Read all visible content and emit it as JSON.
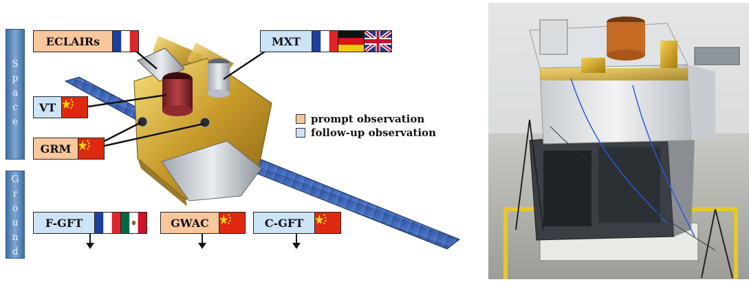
{
  "space_bar": {
    "letters": [
      "S",
      "p",
      "a",
      "c",
      "e"
    ]
  },
  "ground_bar": {
    "letters": [
      "G",
      "r",
      "o",
      "u",
      "n",
      "d"
    ]
  },
  "instruments": {
    "eclairs": {
      "label": "ECLAIRs",
      "kind": "prompt"
    },
    "mxt": {
      "label": "MXT",
      "kind": "follow-up"
    },
    "vt": {
      "label": "VT",
      "kind": "follow-up"
    },
    "grm": {
      "label": "GRM",
      "kind": "prompt"
    }
  },
  "ground": {
    "fgft": {
      "label": "F-GFT",
      "kind": "follow-up"
    },
    "gwac": {
      "label": "GWAC",
      "kind": "prompt"
    },
    "cgft": {
      "label": "C-GFT",
      "kind": "follow-up"
    }
  },
  "legend": {
    "prompt": {
      "label": "prompt observation",
      "color": "#f9c79c"
    },
    "followup": {
      "label": "follow-up observation",
      "color": "#cde3f6"
    }
  },
  "flags": [
    "flag-france-icon",
    "flag-germany-icon",
    "flag-uk-icon",
    "flag-china-icon",
    "flag-mexico-icon"
  ]
}
